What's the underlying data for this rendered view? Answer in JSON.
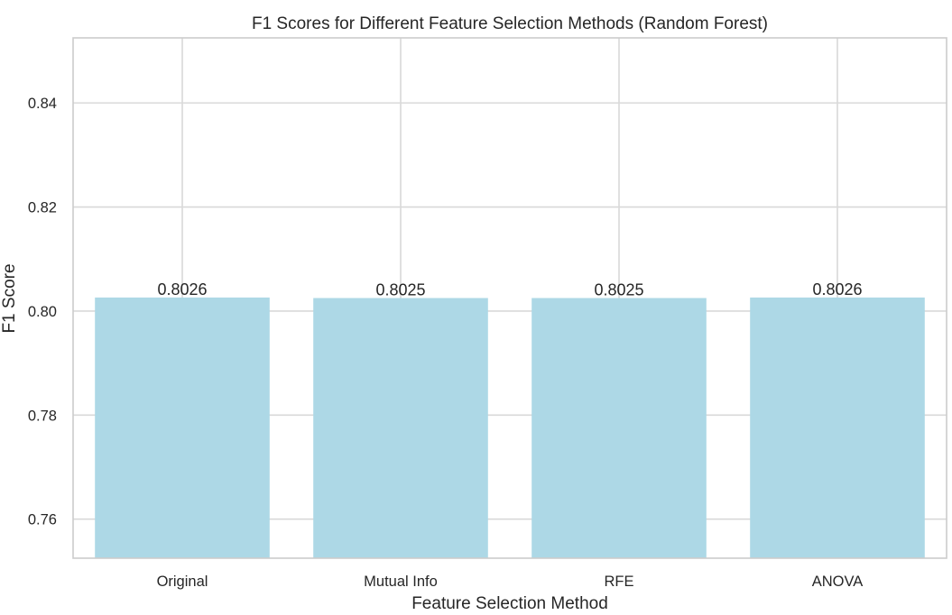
{
  "chart_data": {
    "type": "bar",
    "title": "F1 Scores for Different Feature Selection Methods (Random Forest)",
    "xlabel": "Feature Selection Method",
    "ylabel": "F1 Score",
    "categories": [
      "Original",
      "Mutual Info",
      "RFE",
      "ANOVA"
    ],
    "values": [
      0.8026,
      0.8025,
      0.8025,
      0.8026
    ],
    "data_labels": [
      "0.8026",
      "0.8025",
      "0.8025",
      "0.8026"
    ],
    "ylim": [
      0.7525,
      0.8525
    ],
    "yticks": [
      0.76,
      0.78,
      0.8,
      0.82,
      0.84
    ],
    "ytick_labels": [
      "0.76",
      "0.78",
      "0.80",
      "0.82",
      "0.84"
    ],
    "grid": true,
    "bar_color": "#add8e6"
  }
}
